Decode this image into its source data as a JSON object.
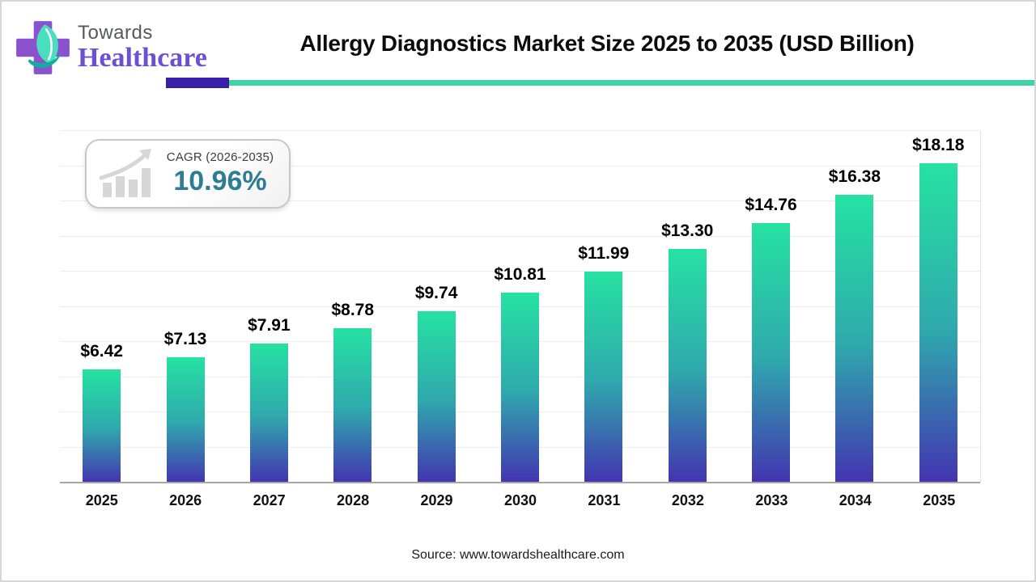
{
  "logo": {
    "towards": "Towards",
    "healthcare": "Healthcare",
    "cross_color": "#8a52cc",
    "leaf_light": "#49dfbe",
    "leaf_dark": "#10ae9f",
    "towards_color": "#58595b",
    "healthcare_color": "#6a50d4"
  },
  "header": {
    "title": "Allergy Diagnostics Market Size 2025 to 2035 (USD Billion)",
    "underline_purple": "#3a1daa",
    "underline_teal": "#3ed3a8"
  },
  "cagr_badge": {
    "label": "CAGR (2026-2035)",
    "value": "10.96%",
    "value_color": "#2e7d93",
    "icon": "bar-chart-growth-icon"
  },
  "chart_data": {
    "type": "bar",
    "title": "Allergy Diagnostics Market Size 2025 to 2035 (USD Billion)",
    "categories": [
      "2025",
      "2026",
      "2027",
      "2028",
      "2029",
      "2030",
      "2031",
      "2032",
      "2033",
      "2034",
      "2035"
    ],
    "values": [
      6.42,
      7.13,
      7.91,
      8.78,
      9.74,
      10.81,
      11.99,
      13.3,
      14.76,
      16.38,
      18.18
    ],
    "value_prefix": "$",
    "value_decimals": 2,
    "xlabel": "",
    "ylabel": "",
    "ylim": [
      0,
      20
    ],
    "gridline_step": 2,
    "grid": "horizontal-only",
    "legend": "none",
    "bar_gradient_top": "#26e2a2",
    "bar_gradient_mid": "#2fa9ad",
    "bar_gradient_bottom": "#4334b0",
    "grid_color": "#ededed",
    "axis_color": "#a6a6a6",
    "label_color": "#000000"
  },
  "footer": {
    "source": "Source: www.towardshealthcare.com"
  }
}
